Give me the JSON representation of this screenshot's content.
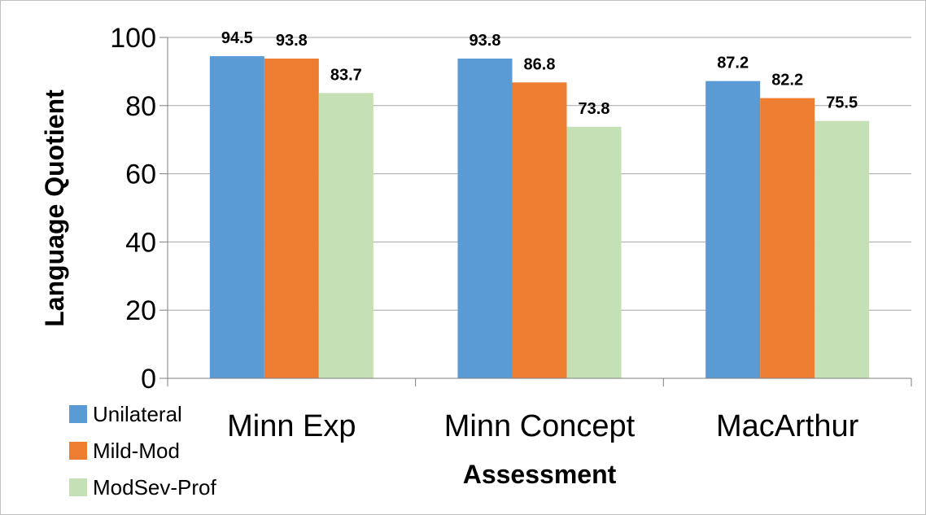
{
  "chart_data": {
    "type": "bar",
    "title": "",
    "xlabel": "Assessment",
    "ylabel": "Language Quotient",
    "categories": [
      "Minn Exp",
      "Minn Concept",
      "MacArthur"
    ],
    "series": [
      {
        "name": "Unilateral",
        "color": "#5b9bd5",
        "values": [
          94.5,
          93.8,
          87.2
        ]
      },
      {
        "name": "Mild-Mod",
        "color": "#ed7d31",
        "values": [
          93.8,
          86.8,
          82.2
        ]
      },
      {
        "name": "ModSev-Prof",
        "color": "#c5e0b4",
        "values": [
          83.7,
          73.8,
          75.5
        ]
      }
    ],
    "ylim": [
      0,
      100
    ],
    "yticks": [
      0,
      20,
      40,
      60,
      80,
      100
    ],
    "grid": true,
    "legend": "bottom-left",
    "data_labels": true
  }
}
